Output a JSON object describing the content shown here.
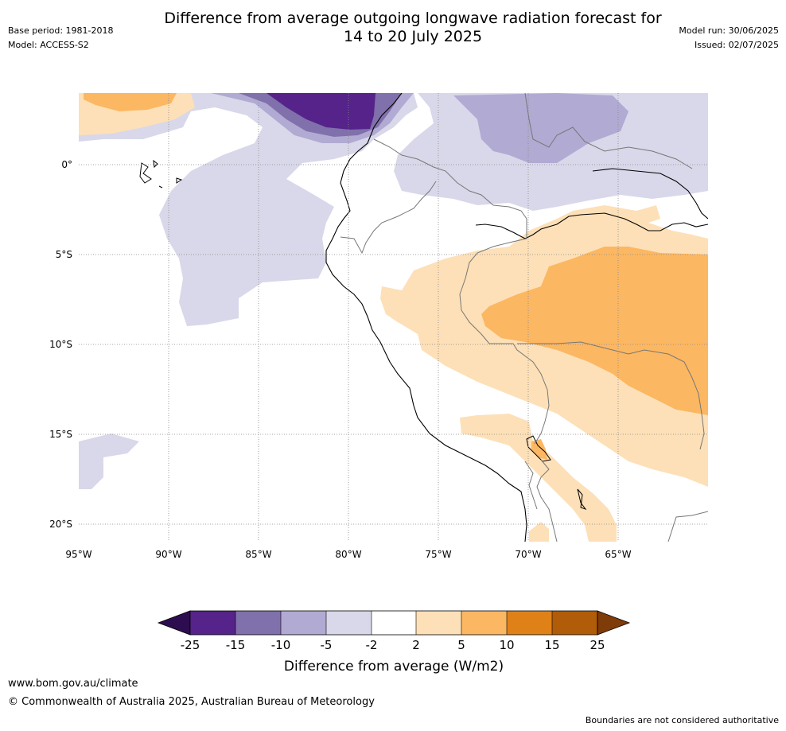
{
  "header": {
    "title_line1": "Difference from average outgoing longwave radiation forecast for",
    "title_line2": "14 to 20 July 2025",
    "base_period": "Base period: 1981-2018",
    "model": "Model: ACCESS-S2",
    "model_run": "Model run: 30/06/2025",
    "issued": "Issued: 02/07/2025"
  },
  "map": {
    "lat_labels": [
      "0°",
      "5°S",
      "10°S",
      "15°S",
      "20°S"
    ],
    "lon_labels": [
      "95°W",
      "90°W",
      "85°W",
      "80°W",
      "75°W",
      "70°W",
      "65°W"
    ]
  },
  "colorbar": {
    "ticks": [
      "-25",
      "-15",
      "-10",
      "-5",
      "-2",
      "2",
      "5",
      "10",
      "15",
      "25"
    ],
    "label": "Difference from average (W/m2)",
    "colors": {
      "below": "#2d0d4f",
      "m25_m15": "#55238a",
      "m15_m10": "#8070ab",
      "m10_m5": "#b1aad2",
      "m5_m2": "#d8d8ea",
      "m2_2": "#ffffff",
      "p2_p5": "#fde0b7",
      "p5_p10": "#fcb762",
      "p10_p15": "#e08117",
      "p15_p25": "#b05c08",
      "above": "#7f3b08"
    }
  },
  "footer": {
    "url": "www.bom.gov.au/climate",
    "copyright": "© Commonwealth of Australia 2025, Australian Bureau of Meteorology",
    "disclaimer": "Boundaries are not considered authoritative"
  }
}
